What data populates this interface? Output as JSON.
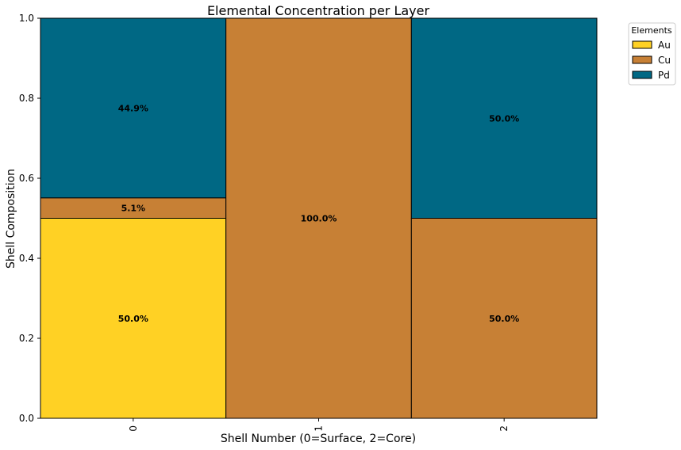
{
  "chart_data": {
    "type": "bar",
    "stacked": true,
    "title": "Elemental Concentration per Layer",
    "xlabel": "Shell Number (0=Surface, 2=Core)",
    "ylabel": "Shell Composition",
    "categories": [
      "0",
      "1",
      "2"
    ],
    "ylim": [
      0,
      1.0
    ],
    "yticks": [
      "0.0",
      "0.2",
      "0.4",
      "0.6",
      "0.8",
      "1.0"
    ],
    "grid": false,
    "legend": {
      "title": "Elements",
      "placement": "outside-top-right"
    },
    "series": [
      {
        "name": "Au",
        "color": "#FFD124",
        "values": [
          0.5,
          0.0,
          0.0
        ],
        "labels": [
          "50.0%",
          "",
          ""
        ]
      },
      {
        "name": "Cu",
        "color": "#C78035",
        "values": [
          0.051,
          1.0,
          0.5
        ],
        "labels": [
          "5.1%",
          "100.0%",
          "50.0%"
        ]
      },
      {
        "name": "Pd",
        "color": "#006884",
        "values": [
          0.449,
          0.0,
          0.5
        ],
        "labels": [
          "44.9%",
          "",
          "50.0%"
        ]
      }
    ]
  }
}
